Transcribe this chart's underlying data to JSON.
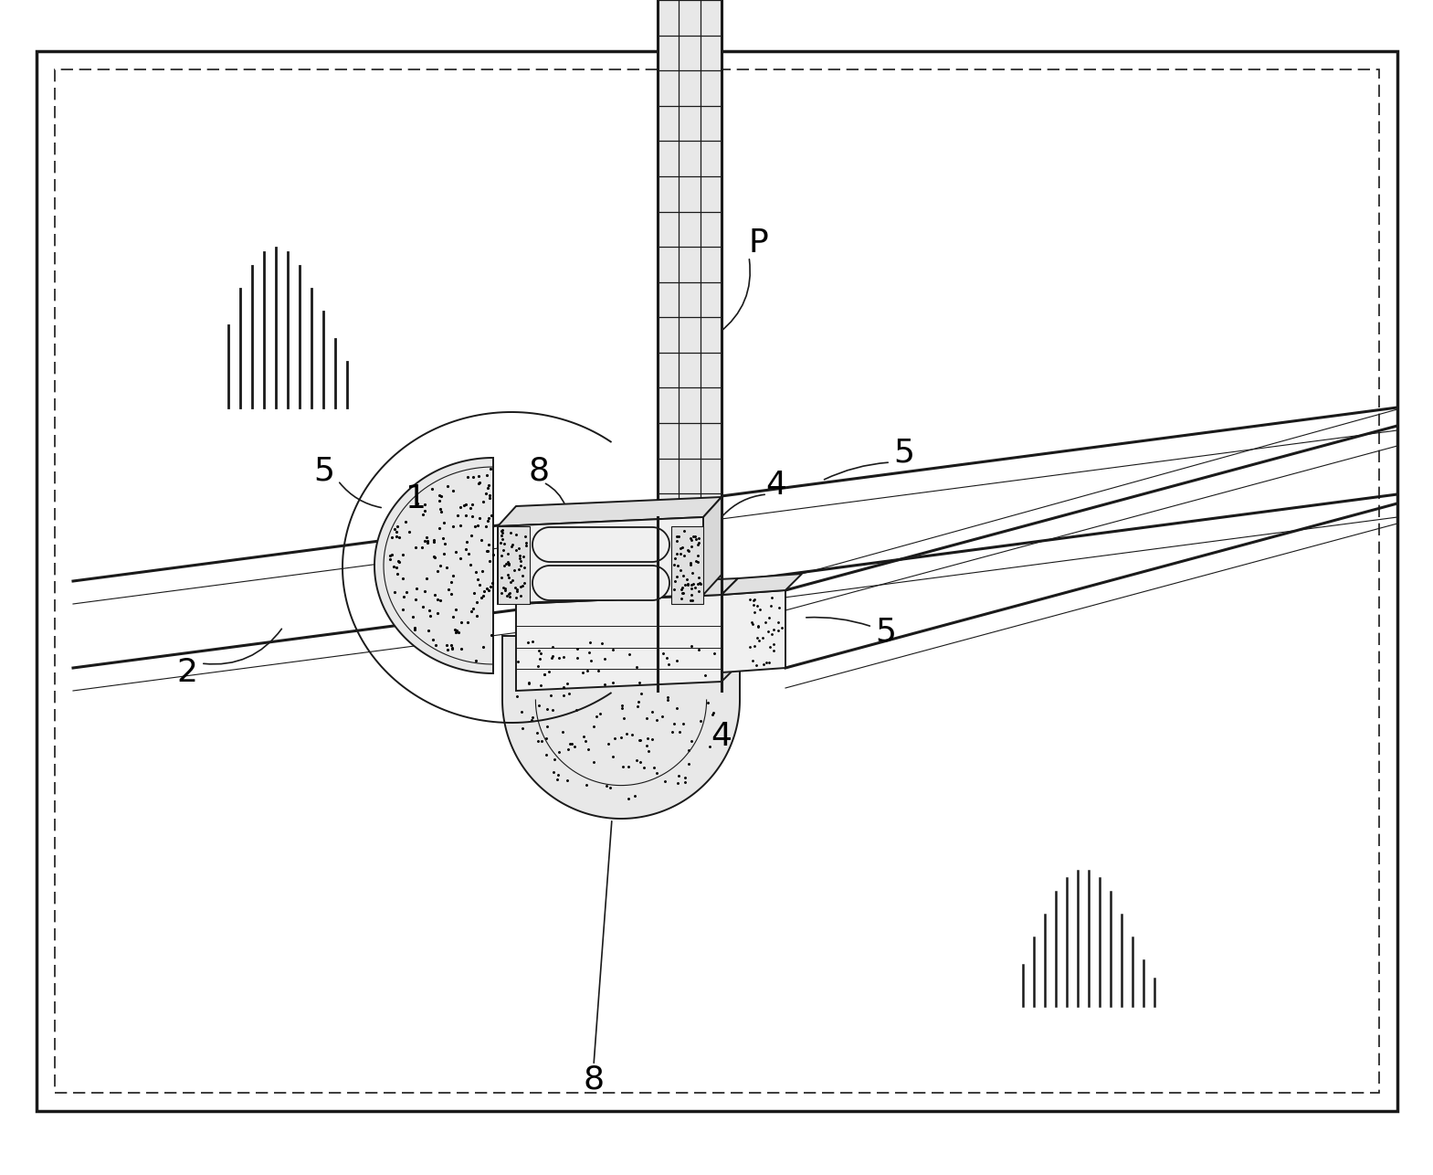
{
  "bg_color": "#ffffff",
  "line_color": "#1a1a1a",
  "label_color": "#000000",
  "figsize": [
    15.69,
    12.86
  ],
  "dpi": 100,
  "lw_main": 1.4,
  "lw_thin": 0.8,
  "lw_thick": 2.2
}
